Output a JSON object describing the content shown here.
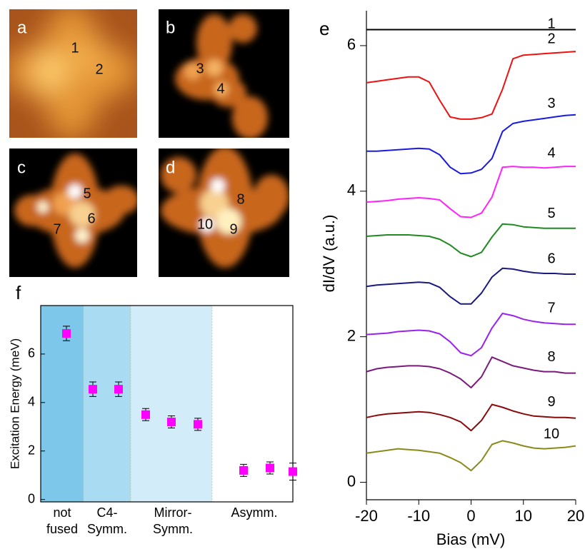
{
  "images": [
    {
      "letter": "a",
      "sites": [
        "1",
        "2"
      ]
    },
    {
      "letter": "b",
      "sites": [
        "3",
        "4"
      ]
    },
    {
      "letter": "c",
      "sites": [
        "5",
        "6",
        "7"
      ]
    },
    {
      "letter": "d",
      "sites": [
        "8",
        "9",
        "10"
      ]
    }
  ],
  "chart_data": [
    {
      "type": "scatter",
      "panel_label": "f",
      "ylabel": "Excitation Energy (meV)",
      "categories": [
        [
          "not",
          "fused"
        ],
        [
          "C4-",
          "Symm."
        ],
        [
          "Mirror-",
          "Symm."
        ],
        [
          "Asymm."
        ]
      ],
      "region_colors": [
        "#7dc7ea",
        "#a9dbf3",
        "#d2ecf9",
        "#ffffff"
      ],
      "ylim": [
        -0.1,
        8.0
      ],
      "yticks": [
        0,
        2,
        4,
        6
      ],
      "series": [
        {
          "color": "#ff00ff",
          "values": [
            6.85,
            4.55,
            4.55,
            3.5,
            3.2,
            3.1,
            1.2,
            1.3,
            1.15
          ],
          "errors": [
            0.3,
            0.3,
            0.3,
            0.25,
            0.25,
            0.25,
            0.25,
            0.25,
            0.35
          ]
        }
      ]
    },
    {
      "type": "line",
      "panel_label": "e",
      "xlabel": "Bias (mV)",
      "ylabel": "dI/dV (a.u.)",
      "x": [
        -20,
        -18,
        -16,
        -14,
        -12,
        -10,
        -8,
        -6,
        -4,
        -2,
        0,
        2,
        4,
        6,
        8,
        10,
        12,
        14,
        16,
        18,
        20
      ],
      "xlim": [
        -20,
        20
      ],
      "xticks": [
        -20,
        -10,
        0,
        10,
        20
      ],
      "ylim": [
        -0.24,
        6.48
      ],
      "yticks": [
        0,
        2,
        4,
        6
      ],
      "series": [
        {
          "name": "1",
          "color": "#000000",
          "values": [
            6.22,
            6.22,
            6.22,
            6.22,
            6.22,
            6.22,
            6.22,
            6.22,
            6.22,
            6.22,
            6.22,
            6.22,
            6.22,
            6.22,
            6.22,
            6.22,
            6.22,
            6.22,
            6.22,
            6.22,
            6.22
          ]
        },
        {
          "name": "2",
          "color": "#ee1111",
          "values": [
            5.49,
            5.51,
            5.53,
            5.55,
            5.57,
            5.57,
            5.5,
            5.25,
            5.02,
            4.99,
            4.99,
            5.01,
            5.06,
            5.4,
            5.82,
            5.87,
            5.88,
            5.89,
            5.9,
            5.91,
            5.92
          ]
        },
        {
          "name": "3",
          "color": "#1a1ae0",
          "values": [
            4.55,
            4.55,
            4.56,
            4.57,
            4.58,
            4.59,
            4.58,
            4.5,
            4.33,
            4.24,
            4.25,
            4.3,
            4.45,
            4.82,
            4.93,
            4.96,
            4.98,
            5.0,
            5.02,
            5.04,
            5.05
          ]
        },
        {
          "name": "4",
          "color": "#ff22ff",
          "values": [
            3.85,
            3.86,
            3.87,
            3.89,
            3.9,
            3.91,
            3.9,
            3.88,
            3.76,
            3.65,
            3.64,
            3.7,
            3.92,
            4.33,
            4.34,
            4.33,
            4.33,
            4.32,
            4.33,
            4.34,
            4.34
          ]
        },
        {
          "name": "5",
          "color": "#1f8a1f",
          "values": [
            3.38,
            3.39,
            3.4,
            3.4,
            3.4,
            3.39,
            3.38,
            3.34,
            3.26,
            3.15,
            3.1,
            3.16,
            3.37,
            3.55,
            3.54,
            3.51,
            3.5,
            3.49,
            3.49,
            3.49,
            3.49
          ]
        },
        {
          "name": "6",
          "color": "#1a1a80",
          "values": [
            2.69,
            2.71,
            2.72,
            2.73,
            2.74,
            2.75,
            2.74,
            2.68,
            2.55,
            2.45,
            2.45,
            2.6,
            2.82,
            2.94,
            2.93,
            2.9,
            2.88,
            2.87,
            2.87,
            2.86,
            2.86
          ]
        },
        {
          "name": "7",
          "color": "#9a22ee",
          "values": [
            2.03,
            2.04,
            2.05,
            2.07,
            2.08,
            2.09,
            2.08,
            2.04,
            1.93,
            1.78,
            1.74,
            1.85,
            2.12,
            2.32,
            2.29,
            2.24,
            2.21,
            2.19,
            2.18,
            2.17,
            2.17
          ]
        },
        {
          "name": "8",
          "color": "#7a1a7a",
          "values": [
            1.52,
            1.56,
            1.58,
            1.59,
            1.6,
            1.6,
            1.59,
            1.56,
            1.5,
            1.42,
            1.3,
            1.45,
            1.72,
            1.66,
            1.6,
            1.57,
            1.54,
            1.52,
            1.52,
            1.5,
            1.5
          ]
        },
        {
          "name": "9",
          "color": "#8b0a0a",
          "values": [
            0.89,
            0.92,
            0.94,
            0.95,
            0.96,
            0.97,
            0.96,
            0.93,
            0.89,
            0.83,
            0.71,
            0.85,
            1.07,
            1.03,
            0.98,
            0.94,
            0.91,
            0.9,
            0.89,
            0.89,
            0.88
          ]
        },
        {
          "name": "10",
          "color": "#8a8a1a",
          "values": [
            0.4,
            0.42,
            0.44,
            0.46,
            0.45,
            0.44,
            0.42,
            0.4,
            0.34,
            0.27,
            0.16,
            0.3,
            0.52,
            0.57,
            0.54,
            0.5,
            0.47,
            0.46,
            0.47,
            0.48,
            0.5
          ]
        }
      ]
    }
  ]
}
